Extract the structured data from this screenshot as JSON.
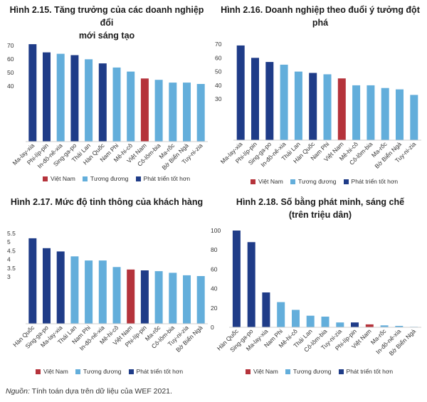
{
  "colors": {
    "vietnam": "#b5333b",
    "equivalent": "#63aedb",
    "better": "#1f3c88"
  },
  "legend": {
    "vietnam": "Việt Nam",
    "equivalent": "Tương đương",
    "better": "Phát triển tốt hơn"
  },
  "source": {
    "label": "Nguồn:",
    "text": "Tính toán dựa trên dữ liệu của WEF 2021."
  },
  "chart_data": [
    {
      "type": "bar",
      "title_lines": [
        "Hình 2.15. Tăng trưởng của các doanh nghiệp đổi",
        "mới sáng tạo"
      ],
      "categories": [
        "Ma-lay-xia",
        "Phi-líp-pin",
        "In-đô-nê-xia",
        "Sing-ga-po",
        "Thái Lan",
        "Hàn Quốc",
        "Nam Phi",
        "Mê-hi-cô",
        "Việt Nam",
        "Cô-lôm-bia",
        "Ma-rốc",
        "Bờ Biển Ngà",
        "Tuy-ni-zia"
      ],
      "values": [
        71,
        65,
        64,
        63,
        60,
        57,
        54,
        51,
        46,
        45,
        43,
        43,
        42
      ],
      "groups": [
        "better",
        "better",
        "equivalent",
        "better",
        "equivalent",
        "better",
        "equivalent",
        "equivalent",
        "vietnam",
        "equivalent",
        "equivalent",
        "equivalent",
        "equivalent"
      ],
      "yticks": [
        "70",
        "60",
        "50",
        "40"
      ],
      "ylim": [
        0,
        72
      ]
    },
    {
      "type": "bar",
      "title_lines": [
        "Hình 2.16. Doanh nghiệp theo đuổi ý tưởng đột phá"
      ],
      "categories": [
        "Ma-lay-xia",
        "Phi-líp-pin",
        "Sing-ga-po",
        "In-đô-nê-xia",
        "Thái Lan",
        "Hàn Quốc",
        "Nam Phi",
        "Việt Nam",
        "Mê-hi-cô",
        "Cô-lôm-bia",
        "Ma-rốc",
        "Bờ Biển Ngà",
        "Tuy-ni-zia"
      ],
      "values": [
        69,
        60,
        57,
        55,
        50,
        49,
        48,
        45,
        40,
        40,
        38,
        37,
        33
      ],
      "groups": [
        "better",
        "better",
        "better",
        "equivalent",
        "equivalent",
        "better",
        "equivalent",
        "vietnam",
        "equivalent",
        "equivalent",
        "equivalent",
        "equivalent",
        "equivalent"
      ],
      "yticks": [
        "70",
        "60",
        "50",
        "40",
        "30"
      ],
      "ylim": [
        0,
        72
      ]
    },
    {
      "type": "bar",
      "title_lines": [
        "Hình 2.17. Mức độ tinh thông của khách hàng"
      ],
      "categories": [
        "Hàn Quốc",
        "Sing-ga-po",
        "Ma-lay-xia",
        "Thái Lan",
        "Nam Phi",
        "In-đô-nê-xia",
        "Mê-hi-cô",
        "Việt Nam",
        "Phi-líp-pin",
        "Ma-rốc",
        "Cô-lôm-bia",
        "Tuy-ni-zia",
        "Bờ Biển Ngà"
      ],
      "values": [
        5.2,
        4.6,
        4.4,
        4.1,
        3.85,
        3.85,
        3.45,
        3.3,
        3.25,
        3.2,
        3.1,
        2.95,
        2.9
      ],
      "groups": [
        "better",
        "better",
        "better",
        "equivalent",
        "equivalent",
        "equivalent",
        "equivalent",
        "vietnam",
        "better",
        "equivalent",
        "equivalent",
        "equivalent",
        "equivalent"
      ],
      "yticks": [
        "5.5",
        "5",
        "4.5",
        "4",
        "3.5",
        "3"
      ],
      "ylim": [
        0,
        5.5
      ]
    },
    {
      "type": "bar",
      "title_lines": [
        "Hình 2.18. Số bằng phát minh, sáng chế",
        "(trên triệu dân)"
      ],
      "categories": [
        "Hàn Quốc",
        "Sing-ga-po",
        "Ma-lay-xia",
        "Nam Phi",
        "Mê-hi-cô",
        "Thái Lan",
        "Cô-lôm-bia",
        "Tuy-ni-zia",
        "Phi-líp-pin",
        "Việt Nam",
        "Ma-rốc",
        "In-đô-nê-xia",
        "Bờ Biển Ngà"
      ],
      "values": [
        100,
        88,
        36,
        26,
        18,
        12,
        11,
        5,
        5,
        3,
        2,
        1.5,
        0.5
      ],
      "groups": [
        "better",
        "better",
        "better",
        "equivalent",
        "equivalent",
        "equivalent",
        "equivalent",
        "equivalent",
        "better",
        "vietnam",
        "equivalent",
        "equivalent",
        "equivalent"
      ],
      "yticks": [
        "100",
        "80",
        "60",
        "40",
        "20",
        "0"
      ],
      "ylim": [
        0,
        100
      ]
    }
  ]
}
